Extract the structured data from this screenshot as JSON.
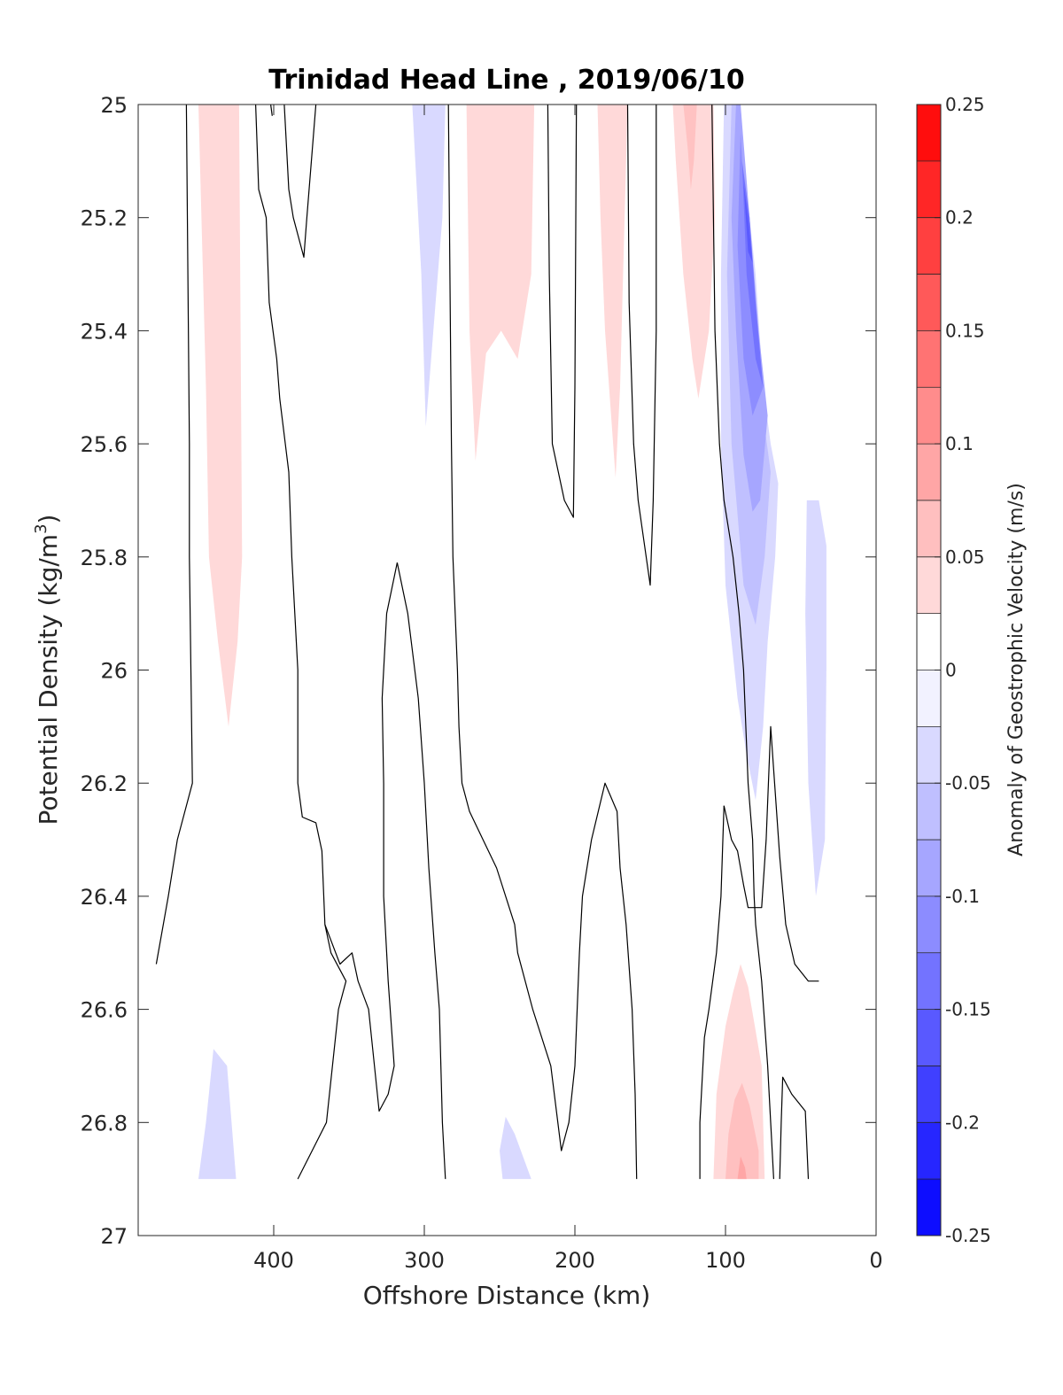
{
  "chart_data": {
    "type": "contour",
    "title": "Trinidad Head Line , 2019/06/10",
    "xlabel": "Offshore Distance (km)",
    "ylabel_main": "Potential Density (kg/m",
    "ylabel_sup": "3",
    "ylabel_close": ")",
    "xlim": [
      490,
      0
    ],
    "ylim": [
      25,
      27
    ],
    "x_reversed": true,
    "y_reversed": true,
    "xticks": [
      400,
      300,
      200,
      100,
      0
    ],
    "xtick_labels": [
      "400",
      "300",
      "200",
      "100",
      "0"
    ],
    "yticks": [
      25,
      25.2,
      25.4,
      25.6,
      25.8,
      26,
      26.2,
      26.4,
      26.6,
      26.8,
      27
    ],
    "ytick_labels": [
      "25",
      "25.2",
      "25.4",
      "25.6",
      "25.8",
      "26",
      "26.2",
      "26.4",
      "26.6",
      "26.8",
      "27"
    ],
    "colorbar": {
      "label": "Anomaly of Geostrophic Velocity (m/s)",
      "range": [
        -0.25,
        0.25
      ],
      "step": 0.025,
      "ticks": [
        0.25,
        0.2,
        0.15,
        0.1,
        0.05,
        0,
        -0.05,
        -0.1,
        -0.15,
        -0.2,
        -0.25
      ],
      "tick_labels": [
        "0.25",
        "0.2",
        "0.15",
        "0.1",
        "0.05",
        "0",
        "-0.05",
        "-0.1",
        "-0.15",
        "-0.2",
        "-0.25"
      ],
      "colormap": "blue-white-red"
    },
    "colors": {
      "max": "#ff0000",
      "min": "#0000ff",
      "zero": "#ffffff"
    },
    "filled_regions": [
      {
        "value": 0.037,
        "points": [
          [
            450,
            25
          ],
          [
            423,
            25
          ],
          [
            421,
            25.8
          ],
          [
            424,
            25.95
          ],
          [
            430,
            26.1
          ],
          [
            437,
            25.95
          ],
          [
            443,
            25.8
          ],
          [
            445,
            25.5
          ]
        ]
      },
      {
        "value": 0.037,
        "points": [
          [
            272,
            25
          ],
          [
            227,
            25
          ],
          [
            229,
            25.3
          ],
          [
            238,
            25.45
          ],
          [
            249,
            25.4
          ],
          [
            259,
            25.44
          ],
          [
            266,
            25.63
          ],
          [
            270,
            25.4
          ]
        ]
      },
      {
        "value": 0.037,
        "points": [
          [
            185,
            25
          ],
          [
            165,
            25
          ],
          [
            168,
            25.3
          ],
          [
            170,
            25.5
          ],
          [
            173,
            25.66
          ],
          [
            180,
            25.4
          ],
          [
            183,
            25.2
          ]
        ]
      },
      {
        "value": 0.037,
        "points": [
          [
            135,
            25
          ],
          [
            108,
            25
          ],
          [
            107,
            25.2
          ],
          [
            111,
            25.4
          ],
          [
            118,
            25.52
          ],
          [
            122,
            25.45
          ],
          [
            128,
            25.3
          ],
          [
            133,
            25.1
          ]
        ]
      },
      {
        "value": 0.06,
        "points": [
          [
            128,
            25
          ],
          [
            119,
            25
          ],
          [
            121,
            25.1
          ],
          [
            123,
            25.15
          ],
          [
            125,
            25.08
          ]
        ]
      },
      {
        "value": -0.037,
        "points": [
          [
            308,
            25
          ],
          [
            286,
            25
          ],
          [
            288,
            25.2
          ],
          [
            294,
            25.4
          ],
          [
            299,
            25.57
          ],
          [
            302,
            25.3
          ]
        ]
      },
      {
        "value": -0.037,
        "points": [
          [
            101,
            25
          ],
          [
            90,
            25
          ],
          [
            88,
            25.1
          ],
          [
            80,
            25.3
          ],
          [
            75,
            25.5
          ],
          [
            70,
            25.6
          ],
          [
            65,
            25.67
          ],
          [
            67,
            25.8
          ],
          [
            72,
            25.95
          ],
          [
            75,
            26.1
          ],
          [
            80,
            26.23
          ],
          [
            86,
            26.15
          ],
          [
            92,
            26.05
          ],
          [
            100,
            25.85
          ],
          [
            103,
            25.6
          ],
          [
            103,
            25.3
          ]
        ]
      },
      {
        "value": -0.062,
        "points": [
          [
            96,
            25
          ],
          [
            90,
            25
          ],
          [
            86,
            25.2
          ],
          [
            80,
            25.4
          ],
          [
            75,
            25.55
          ],
          [
            70,
            25.65
          ],
          [
            74,
            25.8
          ],
          [
            80,
            25.92
          ],
          [
            88,
            25.85
          ],
          [
            96,
            25.6
          ],
          [
            99,
            25.3
          ]
        ]
      },
      {
        "value": -0.087,
        "points": [
          [
            93,
            25
          ],
          [
            90,
            25
          ],
          [
            84,
            25.2
          ],
          [
            78,
            25.4
          ],
          [
            72,
            25.55
          ],
          [
            77,
            25.7
          ],
          [
            82,
            25.72
          ],
          [
            88,
            25.62
          ],
          [
            93,
            25.4
          ],
          [
            96,
            25.2
          ]
        ]
      },
      {
        "value": -0.112,
        "points": [
          [
            90,
            25.05
          ],
          [
            88,
            25.15
          ],
          [
            83,
            25.3
          ],
          [
            80,
            25.4
          ],
          [
            75,
            25.5
          ],
          [
            82,
            25.55
          ],
          [
            88,
            25.45
          ],
          [
            92,
            25.25
          ]
        ]
      },
      {
        "value": -0.137,
        "points": [
          [
            89,
            25.1
          ],
          [
            84,
            25.2
          ],
          [
            80,
            25.35
          ],
          [
            75,
            25.5
          ],
          [
            80,
            25.45
          ],
          [
            86,
            25.3
          ]
        ]
      },
      {
        "value": -0.162,
        "points": [
          [
            88,
            25.14
          ],
          [
            85,
            25.2
          ],
          [
            82,
            25.28
          ],
          [
            85,
            25.26
          ]
        ]
      },
      {
        "value": -0.037,
        "points": [
          [
            46,
            25.7
          ],
          [
            38,
            25.7
          ],
          [
            33,
            25.78
          ],
          [
            33,
            26.0
          ],
          [
            34,
            26.3
          ],
          [
            40,
            26.4
          ],
          [
            45,
            26.2
          ],
          [
            47,
            25.9
          ]
        ]
      },
      {
        "value": -0.037,
        "points": [
          [
            440,
            26.67
          ],
          [
            431,
            26.7
          ],
          [
            425,
            26.9
          ],
          [
            450,
            26.9
          ],
          [
            445,
            26.8
          ]
        ]
      },
      {
        "value": -0.037,
        "points": [
          [
            246,
            26.79
          ],
          [
            240,
            26.82
          ],
          [
            229,
            26.9
          ],
          [
            248,
            26.9
          ],
          [
            250,
            26.85
          ]
        ]
      },
      {
        "value": 0.037,
        "points": [
          [
            90,
            26.52
          ],
          [
            85,
            26.56
          ],
          [
            76,
            26.7
          ],
          [
            74,
            26.9
          ],
          [
            108,
            26.9
          ],
          [
            106,
            26.75
          ],
          [
            100,
            26.63
          ],
          [
            95,
            26.57
          ]
        ]
      },
      {
        "value": 0.062,
        "points": [
          [
            89,
            26.73
          ],
          [
            84,
            26.77
          ],
          [
            78,
            26.85
          ],
          [
            78,
            26.9
          ],
          [
            100,
            26.9
          ],
          [
            98,
            26.82
          ],
          [
            94,
            26.76
          ]
        ]
      },
      {
        "value": 0.087,
        "points": [
          [
            90,
            26.86
          ],
          [
            87,
            26.88
          ],
          [
            86,
            26.9
          ],
          [
            92,
            26.9
          ]
        ]
      }
    ],
    "zero_contours": [
      [
        [
          458,
          25
        ],
        [
          457,
          25.3
        ],
        [
          456,
          25.6
        ],
        [
          456,
          25.8
        ],
        [
          455,
          26
        ],
        [
          454,
          26.2
        ],
        [
          464,
          26.3
        ],
        [
          470,
          26.4
        ],
        [
          478,
          26.52
        ]
      ],
      [
        [
          412,
          25
        ],
        [
          410,
          25.15
        ],
        [
          405,
          25.2
        ],
        [
          403,
          25.35
        ],
        [
          398,
          25.45
        ],
        [
          396,
          25.52
        ],
        [
          390,
          25.65
        ],
        [
          388,
          25.8
        ],
        [
          384,
          26
        ],
        [
          384,
          26.2
        ],
        [
          381,
          26.26
        ],
        [
          372,
          26.27
        ],
        [
          368,
          26.32
        ],
        [
          366,
          26.45
        ],
        [
          362,
          26.5
        ],
        [
          352,
          26.55
        ],
        [
          357,
          26.6
        ],
        [
          365,
          26.8
        ],
        [
          384,
          26.9
        ]
      ],
      [
        [
          393,
          25
        ],
        [
          390,
          25.15
        ],
        [
          387,
          25.2
        ],
        [
          380,
          25.27
        ],
        [
          378,
          25.2
        ],
        [
          372,
          25
        ]
      ],
      [
        [
          402,
          25
        ],
        [
          401,
          25.02
        ]
      ],
      [
        [
          284,
          25
        ],
        [
          283,
          25.3
        ],
        [
          282,
          25.6
        ],
        [
          281,
          25.8
        ],
        [
          278,
          26
        ],
        [
          277,
          26.1
        ],
        [
          275,
          26.2
        ],
        [
          270,
          26.25
        ],
        [
          261,
          26.3
        ],
        [
          252,
          26.35
        ],
        [
          240,
          26.45
        ],
        [
          238,
          26.5
        ],
        [
          228,
          26.6
        ],
        [
          216,
          26.7
        ],
        [
          209,
          26.85
        ],
        [
          204,
          26.8
        ],
        [
          200,
          26.7
        ],
        [
          197,
          26.5
        ],
        [
          195,
          26.4
        ],
        [
          189,
          26.3
        ],
        [
          180,
          26.2
        ],
        [
          172,
          26.25
        ],
        [
          170,
          26.35
        ],
        [
          166,
          26.45
        ],
        [
          162,
          26.6
        ],
        [
          160,
          26.75
        ],
        [
          159,
          26.9
        ]
      ],
      [
        [
          318,
          25.81
        ],
        [
          311,
          25.9
        ],
        [
          304,
          26.05
        ],
        [
          300,
          26.2
        ],
        [
          297,
          26.35
        ],
        [
          293,
          26.5
        ],
        [
          290,
          26.6
        ],
        [
          288,
          26.8
        ],
        [
          286,
          26.9
        ]
      ],
      [
        [
          318,
          25.81
        ],
        [
          325,
          25.9
        ],
        [
          328,
          26.05
        ],
        [
          327,
          26.2
        ],
        [
          327,
          26.4
        ],
        [
          324,
          26.55
        ],
        [
          320,
          26.7
        ],
        [
          324,
          26.75
        ],
        [
          330,
          26.78
        ],
        [
          337,
          26.6
        ],
        [
          344,
          26.55
        ],
        [
          348,
          26.5
        ],
        [
          356,
          26.52
        ],
        [
          366,
          26.45
        ]
      ],
      [
        [
          218,
          25
        ],
        [
          217,
          25.3
        ],
        [
          215,
          25.6
        ],
        [
          207,
          25.7
        ],
        [
          201,
          25.73
        ],
        [
          200,
          25.5
        ],
        [
          199,
          25
        ],
        [
          200,
          25
        ]
      ],
      [
        [
          165,
          25
        ],
        [
          164,
          25.35
        ],
        [
          161,
          25.6
        ],
        [
          158,
          25.7
        ],
        [
          150,
          25.85
        ],
        [
          148,
          25.7
        ],
        [
          146,
          25.4
        ],
        [
          146,
          25
        ]
      ],
      [
        [
          109,
          25
        ],
        [
          107,
          25.4
        ],
        [
          104,
          25.6
        ],
        [
          101,
          25.7
        ],
        [
          95,
          25.8
        ],
        [
          91,
          25.9
        ],
        [
          88,
          26
        ],
        [
          85,
          26.2
        ],
        [
          82,
          26.3
        ],
        [
          81,
          26.4
        ],
        [
          80,
          26.45
        ],
        [
          76,
          26.55
        ],
        [
          72,
          26.7
        ],
        [
          70,
          26.8
        ],
        [
          68,
          26.9
        ]
      ],
      [
        [
          101,
          26.24
        ],
        [
          96,
          26.3
        ],
        [
          92,
          26.32
        ],
        [
          88,
          26.38
        ],
        [
          85,
          26.42
        ],
        [
          79,
          26.42
        ],
        [
          76,
          26.42
        ],
        [
          73,
          26.3
        ],
        [
          70,
          26.1
        ],
        [
          64,
          26.33
        ],
        [
          60,
          26.45
        ],
        [
          54,
          26.52
        ],
        [
          45,
          26.55
        ],
        [
          38,
          26.55
        ]
      ],
      [
        [
          117,
          26.9
        ],
        [
          117,
          26.8
        ],
        [
          115,
          26.7
        ],
        [
          114,
          26.65
        ],
        [
          111,
          26.6
        ],
        [
          106,
          26.5
        ],
        [
          103,
          26.4
        ],
        [
          101,
          26.24
        ]
      ],
      [
        [
          64,
          26.9
        ],
        [
          63,
          26.8
        ],
        [
          62,
          26.72
        ],
        [
          56,
          26.75
        ],
        [
          47,
          26.78
        ],
        [
          45,
          26.9
        ]
      ]
    ]
  }
}
